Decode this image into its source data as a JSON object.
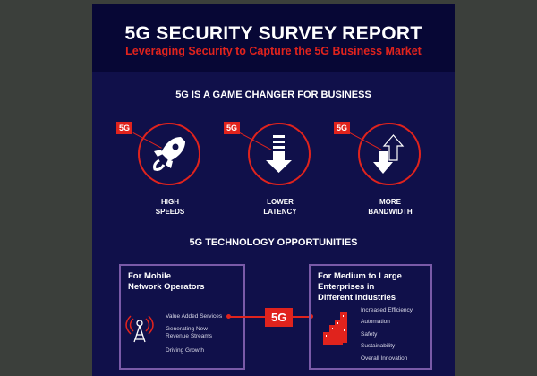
{
  "header": {
    "title": "5G SECURITY SURVEY REPORT",
    "subtitle": "Leveraging Security to Capture the 5G Business Market"
  },
  "section1": {
    "title": "5G IS A GAME CHANGER FOR BUSINESS",
    "features": [
      {
        "badge": "5G",
        "label1": "HIGH",
        "label2": "SPEEDS",
        "icon": "rocket-icon"
      },
      {
        "badge": "5G",
        "label1": "LOWER",
        "label2": "LATENCY",
        "icon": "down-arrow-icon"
      },
      {
        "badge": "5G",
        "label1": "MORE",
        "label2": "BANDWIDTH",
        "icon": "up-down-arrows-icon"
      }
    ]
  },
  "section2": {
    "title": "5G TECHNOLOGY OPPORTUNITIES",
    "center_badge": "5G",
    "left": {
      "heading1": "For Mobile",
      "heading2": "Network Operators",
      "items": [
        "Value Added Services",
        "Generating New",
        "Revenue Streams",
        "Driving Growth"
      ]
    },
    "right": {
      "heading1": "For Medium to Large",
      "heading2": "Enterprises in",
      "heading3": "Different Industries",
      "items": [
        "Increased Efficiency",
        "Automation",
        "Safety",
        "Sustainability",
        "Overall Innovation"
      ]
    }
  },
  "colors": {
    "accent": "#e0231d",
    "header_bg": "#070735",
    "body_bg": "#10104a",
    "box_border": "#7a5aa8"
  }
}
